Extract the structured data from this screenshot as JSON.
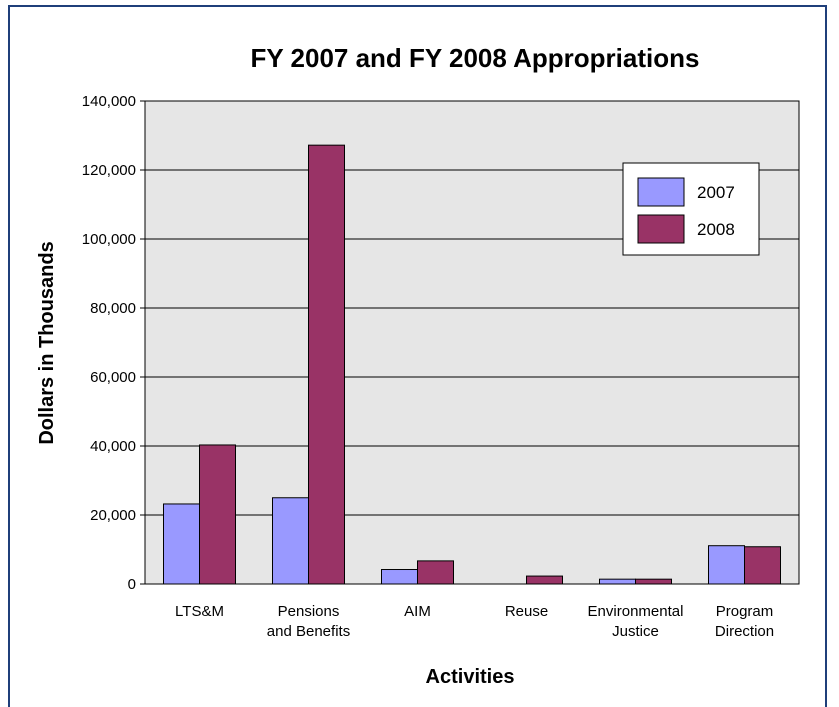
{
  "chart_data": {
    "type": "bar",
    "title": "FY 2007 and FY 2008 Appropriations",
    "xlabel": "Activities",
    "ylabel": "Dollars in Thousands",
    "ylim": [
      0,
      140000
    ],
    "yticks": [
      0,
      20000,
      40000,
      60000,
      80000,
      100000,
      120000,
      140000
    ],
    "ytick_labels": [
      "0",
      "20,000",
      "40,000",
      "60,000",
      "80,000",
      "100,000",
      "120,000",
      "140,000"
    ],
    "grid": true,
    "legend_position": "top-right",
    "categories": [
      [
        "LTS&M"
      ],
      [
        "Pensions",
        "and Benefits"
      ],
      [
        "AIM"
      ],
      [
        "Reuse"
      ],
      [
        "Environmental",
        "Justice"
      ],
      [
        "Program",
        "Direction"
      ]
    ],
    "series": [
      {
        "name": "2007",
        "color": "#9999ff",
        "values": [
          23200,
          25000,
          4200,
          0,
          1400,
          11100
        ]
      },
      {
        "name": "2008",
        "color": "#993366",
        "values": [
          40300,
          127200,
          6700,
          2300,
          1400,
          10800
        ]
      }
    ],
    "colors": {
      "frame_border": "#1f3f7a",
      "plot_background": "#e6e6e6"
    }
  }
}
